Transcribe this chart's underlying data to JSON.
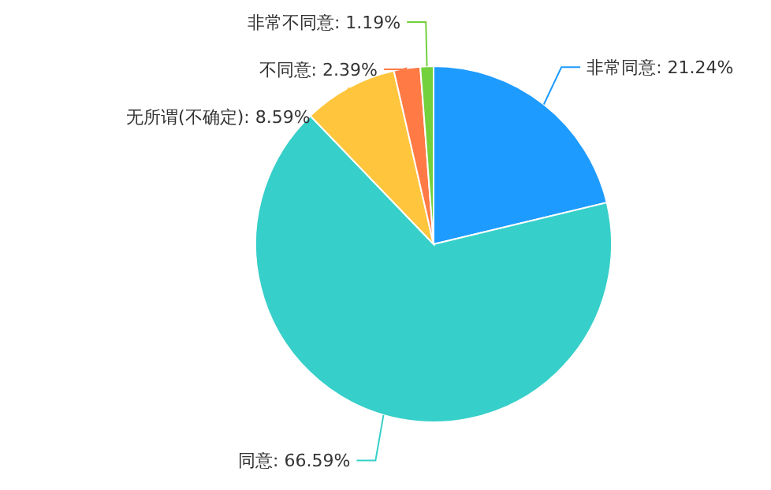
{
  "chart_data": {
    "type": "pie",
    "categories": [
      "非常同意",
      "同意",
      "无所谓(不确定)",
      "不同意",
      "非常不同意"
    ],
    "values": [
      21.24,
      66.59,
      8.59,
      2.39,
      1.19
    ],
    "value_labels": [
      "21.24%",
      "66.59%",
      "8.59%",
      "2.39%",
      "1.19%"
    ],
    "colors": [
      "#1e9bff",
      "#36cfc9",
      "#ffc53d",
      "#ff7a45",
      "#73d13d"
    ],
    "legend": false
  }
}
